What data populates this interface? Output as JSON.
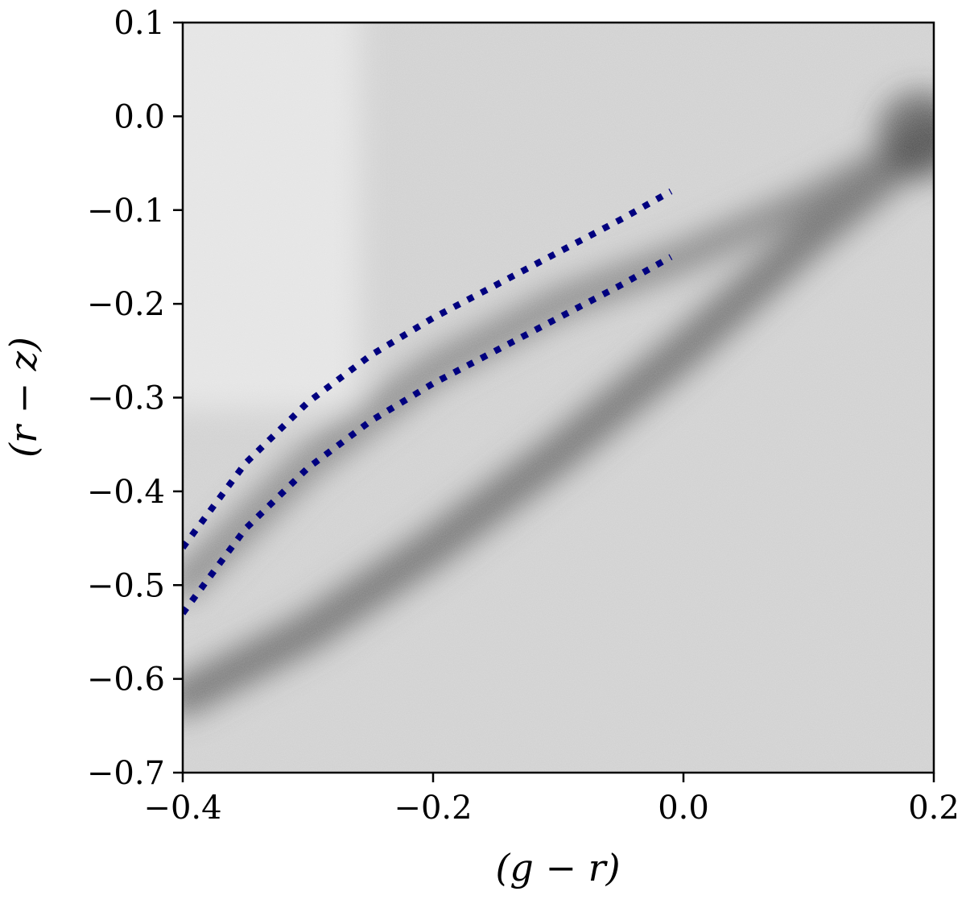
{
  "chart_data": {
    "type": "heatmap",
    "title": "",
    "xlabel": "(g − r)",
    "ylabel": "(r − z)",
    "xlim": [
      -0.4,
      0.2
    ],
    "ylim": [
      -0.7,
      0.1
    ],
    "x_ticks": [
      -0.4,
      -0.2,
      0.0,
      0.2
    ],
    "x_tick_labels": [
      "−0.4",
      "−0.2",
      "0.0",
      "0.2"
    ],
    "y_ticks": [
      0.1,
      0.0,
      -0.1,
      -0.2,
      -0.3,
      -0.4,
      -0.5,
      -0.6,
      -0.7
    ],
    "y_tick_labels": [
      "0.1",
      "0.0",
      "−0.1",
      "−0.2",
      "−0.3",
      "−0.4",
      "−0.5",
      "−0.6",
      "−0.7"
    ],
    "grid": false,
    "colormap": "greys",
    "density_ridges": [
      {
        "x": [
          -0.4,
          -0.3,
          -0.2,
          -0.1,
          0.0,
          0.1,
          0.2
        ],
        "y": [
          -0.62,
          -0.55,
          -0.46,
          -0.36,
          -0.25,
          -0.13,
          -0.02
        ]
      },
      {
        "x": [
          -0.4,
          -0.3,
          -0.2,
          -0.1,
          0.0,
          0.1,
          0.2
        ],
        "y": [
          -0.5,
          -0.37,
          -0.27,
          -0.2,
          -0.15,
          -0.09,
          -0.02
        ]
      }
    ],
    "series": [
      {
        "style": "dotted",
        "color": "#00007f",
        "x": [
          -0.4,
          -0.35,
          -0.3,
          -0.25,
          -0.2,
          -0.15,
          -0.1,
          -0.05,
          -0.01
        ],
        "y": [
          -0.46,
          -0.37,
          -0.305,
          -0.255,
          -0.215,
          -0.18,
          -0.145,
          -0.11,
          -0.08
        ]
      },
      {
        "style": "dotted",
        "color": "#00007f",
        "x": [
          -0.4,
          -0.35,
          -0.3,
          -0.25,
          -0.2,
          -0.15,
          -0.1,
          -0.05,
          -0.01
        ],
        "y": [
          -0.53,
          -0.44,
          -0.375,
          -0.325,
          -0.285,
          -0.25,
          -0.215,
          -0.18,
          -0.15
        ]
      }
    ]
  }
}
